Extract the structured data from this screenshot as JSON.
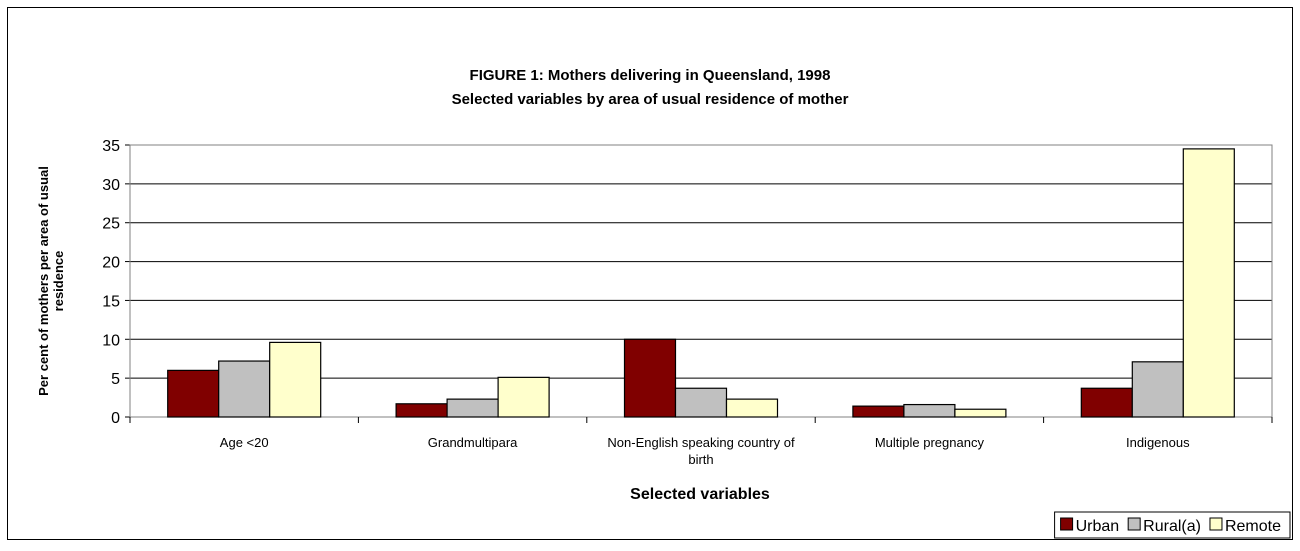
{
  "chart_data": {
    "type": "bar",
    "title": "FIGURE 1:  Mothers delivering in Queensland, 1998",
    "subtitle": "Selected variables by area of usual residence of mother",
    "x_label": "Selected variables",
    "y_label": "Per cent of mothers per area of usual residence",
    "categories": [
      "Age <20",
      "Grandmultipara",
      "Non-English speaking country of birth",
      "Multiple pregnancy",
      "Indigenous"
    ],
    "series": [
      {
        "name": "Urban",
        "color": "#800000",
        "values": [
          6.0,
          1.7,
          10.0,
          1.4,
          3.7
        ]
      },
      {
        "name": "Rural(a)",
        "color": "#c0c0c0",
        "values": [
          7.2,
          2.3,
          3.7,
          1.6,
          7.1
        ]
      },
      {
        "name": "Remote",
        "color": "#ffffcc",
        "values": [
          9.6,
          5.1,
          2.3,
          1.0,
          34.5
        ]
      }
    ],
    "ylim": [
      0,
      35
    ],
    "yticks": [
      0,
      5,
      10,
      15,
      20,
      25,
      30,
      35
    ],
    "grid": true,
    "legend": "bottom-right"
  }
}
